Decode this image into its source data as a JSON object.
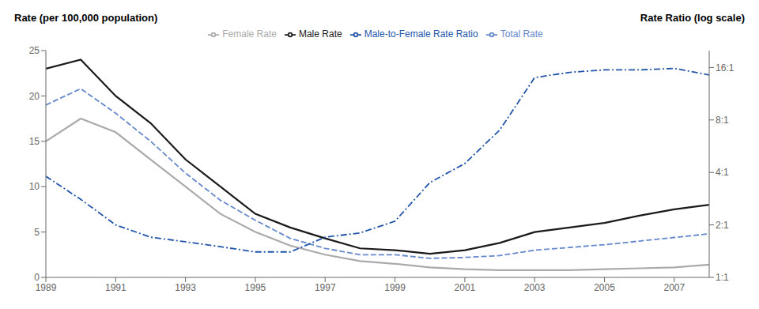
{
  "chart_data": {
    "type": "line",
    "ylabel": "Rate (per 100,000 population)",
    "y2label": "Rate Ratio (log scale)",
    "x": [
      1989,
      1990,
      1991,
      1992,
      1993,
      1994,
      1995,
      1996,
      1997,
      1998,
      1999,
      2000,
      2001,
      2002,
      2003,
      2004,
      2005,
      2006,
      2007,
      2008
    ],
    "series": [
      {
        "name": "Male Rate",
        "color": "#1a1a1a",
        "line_style": "solid",
        "values": [
          23.0,
          24.0,
          20.0,
          17.0,
          13.0,
          10.0,
          7.0,
          5.5,
          4.3,
          3.2,
          3.0,
          2.6,
          3.0,
          3.8,
          5.0,
          5.5,
          6.0,
          6.8,
          7.5,
          8.0
        ]
      },
      {
        "name": "Female Rate",
        "color": "#aaaaaa",
        "line_style": "solid",
        "values": [
          15.0,
          17.5,
          16.0,
          13.0,
          10.0,
          7.0,
          5.0,
          3.5,
          2.5,
          1.8,
          1.5,
          1.1,
          0.9,
          0.8,
          0.8,
          0.8,
          0.9,
          1.0,
          1.1,
          1.4
        ]
      },
      {
        "name": "Total Rate",
        "color": "#6688cc",
        "line_style": "dashed",
        "values": [
          19.0,
          20.8,
          18.1,
          15.0,
          11.5,
          8.5,
          6.3,
          4.3,
          3.2,
          2.5,
          2.5,
          2.1,
          2.2,
          2.4,
          3.0,
          3.3,
          3.6,
          4.0,
          4.4,
          4.8
        ]
      },
      {
        "name": "Male-to-Female Rate Ratio",
        "color": "#2255aa",
        "line_style": "dashdot",
        "axis": "y2",
        "values": [
          3.8,
          2.8,
          2.0,
          1.7,
          1.6,
          1.5,
          1.4,
          1.4,
          1.7,
          1.8,
          2.1,
          3.5,
          4.5,
          7.0,
          14.0,
          15.0,
          15.5,
          15.5,
          15.8,
          14.5
        ]
      }
    ],
    "xlim": [
      1989,
      2008
    ],
    "xticks": [
      1989,
      1991,
      1993,
      1995,
      1997,
      1999,
      2001,
      2003,
      2005,
      2007
    ],
    "ylim": [
      0,
      25
    ],
    "yticks": [
      0,
      5,
      10,
      15,
      20,
      25
    ],
    "y2lim": [
      1,
      20
    ],
    "y2ticks": [
      {
        "value": 1,
        "label": "1:1"
      },
      {
        "value": 2,
        "label": "2:1"
      },
      {
        "value": 4,
        "label": "4:1"
      },
      {
        "value": 8,
        "label": "8:1"
      },
      {
        "value": 16,
        "label": "16:1"
      }
    ],
    "log": "y2",
    "grid": false,
    "legend": "top"
  }
}
